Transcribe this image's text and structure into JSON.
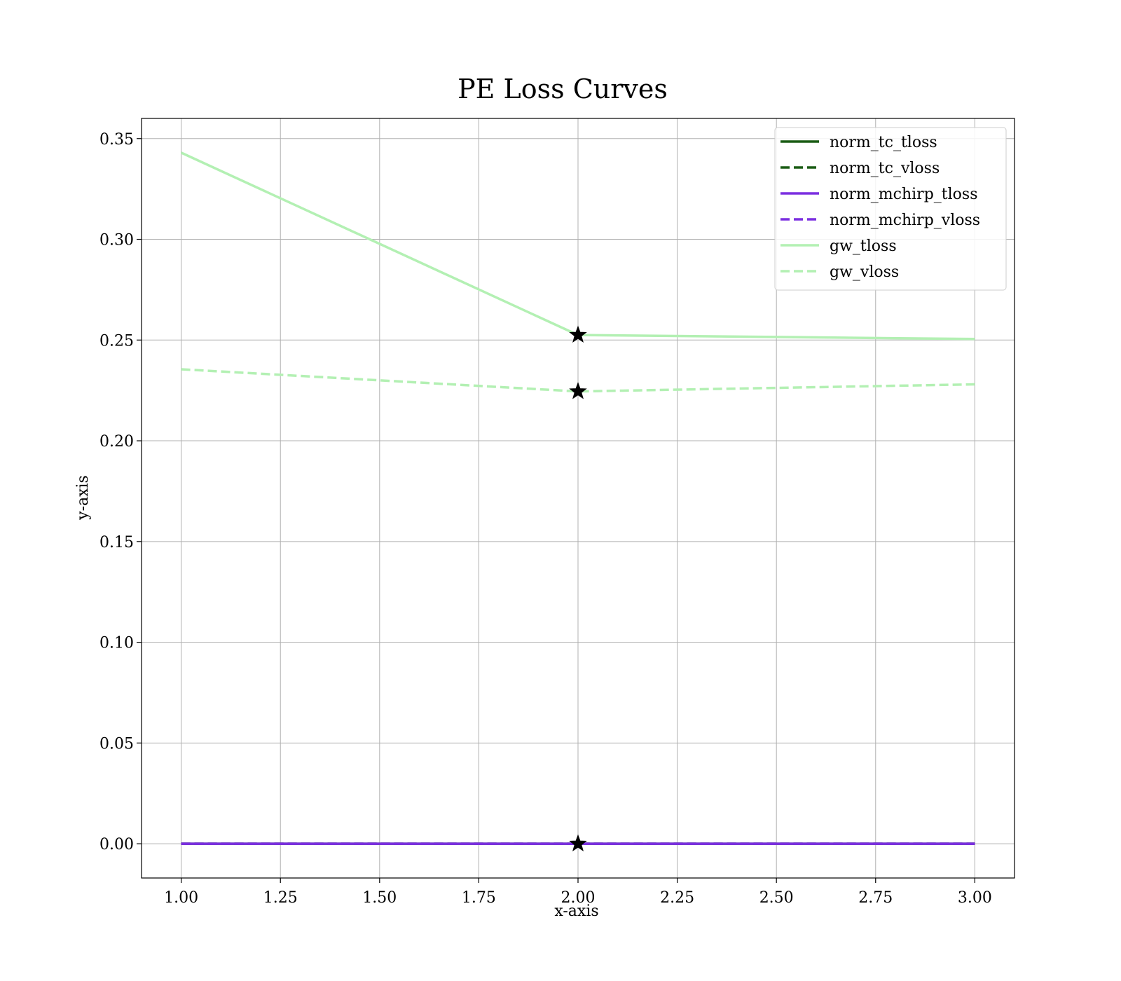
{
  "chart_data": {
    "type": "line",
    "title": "PE Loss Curves",
    "xlabel": "x-axis",
    "ylabel": "y-axis",
    "xlim": [
      0.9,
      3.1
    ],
    "ylim": [
      -0.017,
      0.36
    ],
    "xticks": [
      1.0,
      1.25,
      1.5,
      1.75,
      2.0,
      2.25,
      2.5,
      2.75,
      3.0
    ],
    "xtick_labels": [
      "1.00",
      "1.25",
      "1.50",
      "1.75",
      "2.00",
      "2.25",
      "2.50",
      "2.75",
      "3.00"
    ],
    "yticks": [
      0.0,
      0.05,
      0.1,
      0.15,
      0.2,
      0.25,
      0.3,
      0.35
    ],
    "ytick_labels": [
      "0.00",
      "0.05",
      "0.10",
      "0.15",
      "0.20",
      "0.25",
      "0.30",
      "0.35"
    ],
    "grid": true,
    "legend_position": "top-right",
    "x": [
      1,
      2,
      3
    ],
    "series": [
      {
        "name": "norm_tc_tloss",
        "values": [
          0.0,
          0.0,
          0.0
        ],
        "color": "#1a5c14",
        "dash": "solid"
      },
      {
        "name": "norm_tc_vloss",
        "values": [
          0.0,
          0.0,
          0.0
        ],
        "color": "#1a5c14",
        "dash": "dashed"
      },
      {
        "name": "norm_mchirp_tloss",
        "values": [
          0.0,
          0.0,
          0.0
        ],
        "color": "#7b2fe0",
        "dash": "solid"
      },
      {
        "name": "norm_mchirp_vloss",
        "values": [
          0.0,
          0.0,
          0.0
        ],
        "color": "#7b2fe0",
        "dash": "dashed"
      },
      {
        "name": "gw_tloss",
        "values": [
          0.343,
          0.2525,
          0.2505
        ],
        "color": "#b3f0b3",
        "dash": "solid"
      },
      {
        "name": "gw_vloss",
        "values": [
          0.2355,
          0.2245,
          0.228
        ],
        "color": "#b3f0b3",
        "dash": "dashed"
      }
    ],
    "markers": [
      {
        "x": 2,
        "y": 0.2525,
        "shape": "star"
      },
      {
        "x": 2,
        "y": 0.2245,
        "shape": "star"
      },
      {
        "x": 2,
        "y": 0.0,
        "shape": "star"
      }
    ]
  }
}
